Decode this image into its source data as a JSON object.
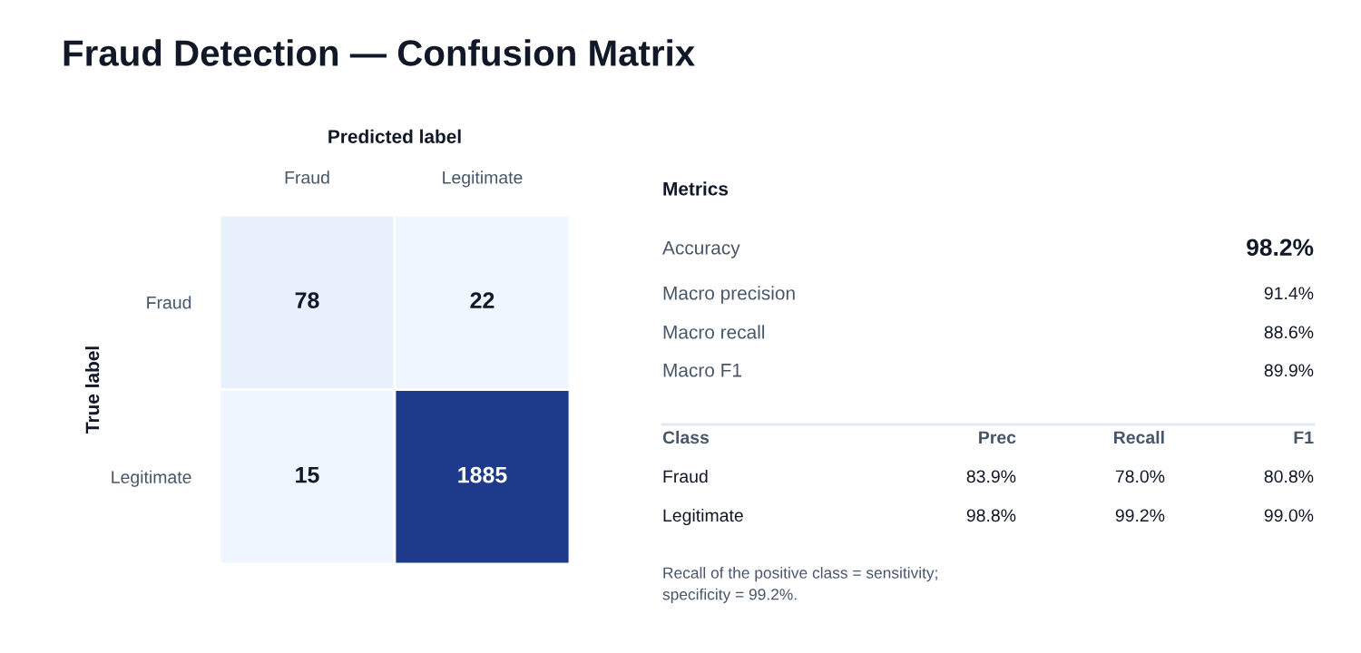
{
  "chart_data": [
    {
      "type": "heatmap",
      "title": "Fraud Detection — Confusion Matrix",
      "xlabel": "Predicted label",
      "ylabel": "True label",
      "categories": [
        "Fraud",
        "Legitimate"
      ],
      "y_categories": [
        "Fraud",
        "Legitimate"
      ],
      "cells": [
        [
          78,
          22
        ],
        [
          15,
          1885
        ]
      ],
      "color": "#1e3a8a",
      "data_labels": true
    },
    {
      "type": "other",
      "title": "Metrics",
      "annotations": [
        "Accuracy",
        "98.2%",
        "Macro precision",
        "91.4%",
        "Macro recall",
        "88.6%",
        "Macro F1",
        "89.9%",
        "Class",
        "Prec",
        "Recall",
        "F1",
        "Fraud",
        "83.9%",
        "78.0%",
        "80.8%",
        "Legitimate",
        "98.8%",
        "99.2%",
        "99.0%",
        "Recall of the positive class = sensitivity;\nspecificity = 99.2%."
      ]
    }
  ]
}
